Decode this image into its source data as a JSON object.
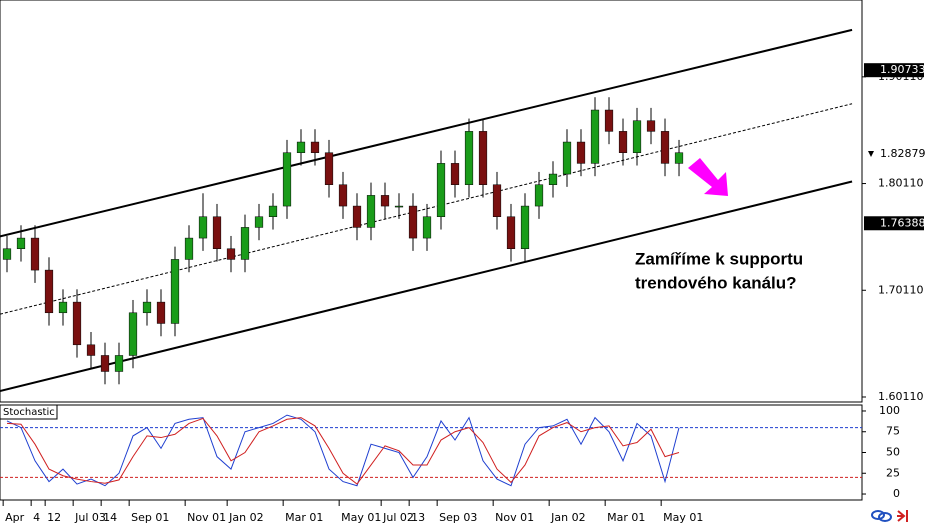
{
  "chart_data": [
    {
      "type": "candlestick",
      "up_color": "#1a9c1a",
      "down_color": "#7a1010",
      "categories": [
        "Apr",
        null,
        "4",
        "12",
        null,
        "Jul 03",
        null,
        "14",
        null,
        "Sep 01",
        null,
        null,
        null,
        "Nov 01",
        null,
        null,
        "Jan 02",
        null,
        null,
        null,
        "Mar 01",
        null,
        null,
        null,
        "May 01",
        null,
        null,
        "Jul 02",
        null,
        "13",
        null,
        "Sep 03",
        null,
        null,
        null,
        "Nov 01",
        null,
        null,
        null,
        "Jan 02",
        null,
        null,
        null,
        "Mar 01",
        null,
        null,
        null,
        "May 01",
        null
      ],
      "open": [
        1.73,
        1.74,
        1.75,
        1.72,
        1.68,
        1.69,
        1.65,
        1.64,
        1.625,
        1.64,
        1.68,
        1.69,
        1.67,
        1.73,
        1.75,
        1.77,
        1.74,
        1.73,
        1.76,
        1.77,
        1.78,
        1.83,
        1.84,
        1.83,
        1.8,
        1.78,
        1.76,
        1.79,
        1.78,
        1.78,
        1.75,
        1.77,
        1.82,
        1.8,
        1.85,
        1.8,
        1.77,
        1.74,
        1.78,
        1.8,
        1.81,
        1.84,
        1.82,
        1.87,
        1.85,
        1.83,
        1.86,
        1.85,
        1.82
      ],
      "high": [
        1.752,
        1.762,
        1.762,
        1.732,
        1.702,
        1.702,
        1.662,
        1.652,
        1.652,
        1.692,
        1.702,
        1.702,
        1.742,
        1.762,
        1.792,
        1.782,
        1.752,
        1.772,
        1.782,
        1.792,
        1.842,
        1.852,
        1.852,
        1.842,
        1.812,
        1.792,
        1.802,
        1.802,
        1.792,
        1.792,
        1.782,
        1.832,
        1.832,
        1.862,
        1.862,
        1.812,
        1.782,
        1.792,
        1.812,
        1.822,
        1.852,
        1.852,
        1.882,
        1.882,
        1.862,
        1.872,
        1.872,
        1.862,
        1.842
      ],
      "low": [
        1.718,
        1.728,
        1.708,
        1.668,
        1.668,
        1.638,
        1.628,
        1.613,
        1.613,
        1.628,
        1.668,
        1.658,
        1.658,
        1.718,
        1.738,
        1.728,
        1.718,
        1.718,
        1.748,
        1.758,
        1.768,
        1.818,
        1.818,
        1.788,
        1.768,
        1.748,
        1.748,
        1.768,
        1.768,
        1.738,
        1.738,
        1.758,
        1.788,
        1.788,
        1.788,
        1.758,
        1.728,
        1.728,
        1.768,
        1.788,
        1.798,
        1.808,
        1.808,
        1.838,
        1.818,
        1.818,
        1.838,
        1.808,
        1.808
      ],
      "close": [
        1.74,
        1.75,
        1.72,
        1.68,
        1.69,
        1.65,
        1.64,
        1.625,
        1.64,
        1.68,
        1.69,
        1.67,
        1.73,
        1.75,
        1.77,
        1.74,
        1.73,
        1.76,
        1.77,
        1.78,
        1.83,
        1.84,
        1.83,
        1.8,
        1.78,
        1.76,
        1.79,
        1.78,
        1.78,
        1.75,
        1.77,
        1.82,
        1.8,
        1.85,
        1.8,
        1.77,
        1.74,
        1.78,
        1.8,
        1.81,
        1.84,
        1.82,
        1.87,
        1.85,
        1.83,
        1.86,
        1.85,
        1.82,
        1.83
      ],
      "xlim": [
        -0.5,
        61.07
      ],
      "ylim": [
        1.5964,
        1.9731
      ],
      "yticks": [
        {
          "value": 1.6011,
          "label": "1.60110"
        },
        {
          "value": 1.7011,
          "label": "1.70110"
        },
        {
          "value": 1.8011,
          "label": "1.80110"
        },
        {
          "value": 1.9011,
          "label": "1.90110"
        }
      ],
      "levels": [
        1.90733,
        1.76388
      ],
      "bid": 1.82879,
      "lines": [
        {
          "style": "solid",
          "x": [
            -0.5,
            60.36
          ],
          "y": [
            1.7516,
            1.9451
          ]
        },
        {
          "style": "dashed",
          "x": [
            -0.5,
            60.36
          ],
          "y": [
            1.6787,
            1.8759
          ]
        },
        {
          "style": "solid",
          "x": [
            -0.5,
            60.36
          ],
          "y": [
            1.6067,
            1.803
          ]
        }
      ],
      "annotation": [
        "Zamíříme k supportu",
        "trendového kanálu?"
      ]
    },
    {
      "type": "line",
      "title": "Stochastic",
      "series": [
        {
          "color": "#1f3fd0",
          "values": [
            88,
            80,
            40,
            15,
            30,
            12,
            18,
            10,
            25,
            70,
            80,
            55,
            85,
            90,
            92,
            45,
            30,
            75,
            80,
            85,
            95,
            90,
            75,
            30,
            15,
            10,
            60,
            55,
            50,
            20,
            45,
            88,
            65,
            92,
            40,
            18,
            10,
            60,
            80,
            82,
            90,
            60,
            92,
            75,
            40,
            85,
            70,
            15,
            80
          ]
        },
        {
          "color": "#d02020",
          "values": [
            85,
            84,
            60,
            30,
            22,
            18,
            15,
            13,
            17,
            45,
            70,
            68,
            72,
            85,
            91,
            70,
            40,
            50,
            75,
            82,
            90,
            92,
            82,
            55,
            25,
            12,
            35,
            58,
            52,
            35,
            35,
            65,
            75,
            80,
            62,
            30,
            14,
            35,
            70,
            80,
            86,
            75,
            80,
            82,
            58,
            62,
            78,
            45,
            50
          ]
        }
      ],
      "levels": [
        {
          "value": 80,
          "color": "#1f3fd0"
        },
        {
          "value": 20,
          "color": "#d02020"
        }
      ],
      "ylim": [
        -7.2,
        107.2
      ],
      "yticks": [
        0,
        25,
        50,
        75,
        100
      ]
    }
  ]
}
